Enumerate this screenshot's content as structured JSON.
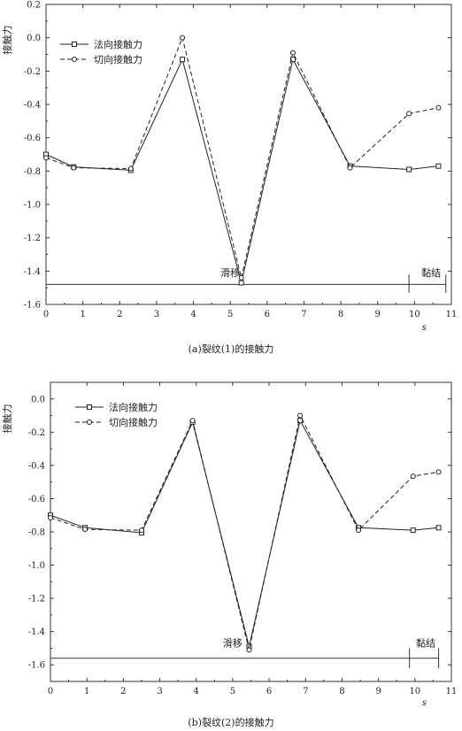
{
  "chart_data": [
    {
      "type": "line",
      "caption": "(a)裂纹(1)的接触力",
      "ylabel": "接触力",
      "xlabel": "s",
      "xlim": [
        0,
        11
      ],
      "ylim": [
        -1.6,
        0.2
      ],
      "xticks": [
        "0",
        "1",
        "2",
        "3",
        "4",
        "5",
        "6",
        "7",
        "8",
        "9",
        "10",
        "11"
      ],
      "yticks": [
        "0.2",
        "0.0",
        "-0.2",
        "-0.4",
        "-0.6",
        "-0.8",
        "-1.0",
        "-1.2",
        "-1.4",
        "-1.6"
      ],
      "legend_position": "top-left",
      "series": [
        {
          "name": "法向接触力",
          "style": "solid",
          "marker": "square",
          "x": [
            0,
            0.75,
            2.3,
            3.7,
            5.3,
            6.7,
            8.25,
            9.85,
            10.65
          ],
          "y": [
            -0.7,
            -0.775,
            -0.795,
            -0.13,
            -1.47,
            -0.13,
            -0.77,
            -0.79,
            -0.77
          ]
        },
        {
          "name": "切向接触力",
          "style": "dashed",
          "marker": "circle",
          "x": [
            0,
            0.75,
            2.3,
            3.7,
            5.3,
            6.7,
            8.25,
            9.85,
            10.65
          ],
          "y": [
            -0.72,
            -0.78,
            -0.785,
            0.0,
            -1.44,
            -0.09,
            -0.78,
            -0.455,
            -0.42
          ]
        }
      ],
      "annotations": [
        {
          "text": "滑移",
          "x": 5.0,
          "y": -1.43
        },
        {
          "text": "黏结",
          "x": 10.45,
          "y": -1.43
        }
      ],
      "regions": {
        "y": -1.48,
        "x_start": 0,
        "divider": 9.85,
        "x_end": 10.85,
        "divider_top": -1.42,
        "divider_bottom": -1.53
      }
    },
    {
      "type": "line",
      "caption": "(b)裂纹(2)的接触力",
      "ylabel": "接触力",
      "xlabel": "s",
      "xlim": [
        0,
        11
      ],
      "ylim": [
        -1.7,
        0.1
      ],
      "xticks": [
        "0",
        "1",
        "2",
        "3",
        "4",
        "5",
        "6",
        "7",
        "8",
        "9",
        "10",
        "11"
      ],
      "yticks": [
        "0.0",
        "-0.2",
        "-0.4",
        "-0.6",
        "-0.8",
        "-1.0",
        "-1.2",
        "-1.4",
        "-1.6"
      ],
      "legend_position": "top-left",
      "series": [
        {
          "name": "法向接触力",
          "style": "solid",
          "marker": "square",
          "x": [
            0,
            0.95,
            2.5,
            3.9,
            5.45,
            6.85,
            8.45,
            9.95,
            10.65
          ],
          "y": [
            -0.7,
            -0.775,
            -0.805,
            -0.14,
            -1.49,
            -0.13,
            -0.775,
            -0.79,
            -0.775
          ]
        },
        {
          "name": "切向接触力",
          "style": "dashed",
          "marker": "circle",
          "x": [
            0,
            0.95,
            2.5,
            3.9,
            5.45,
            6.85,
            8.45,
            9.95,
            10.65
          ],
          "y": [
            -0.715,
            -0.785,
            -0.79,
            -0.13,
            -1.51,
            -0.1,
            -0.79,
            -0.465,
            -0.44
          ]
        }
      ],
      "annotations": [
        {
          "text": "滑移",
          "x": 5.0,
          "y": -1.49
        },
        {
          "text": "黏结",
          "x": 10.3,
          "y": -1.49
        }
      ],
      "regions": {
        "y": -1.56,
        "x_start": 0,
        "divider": 9.85,
        "x_end": 10.65,
        "divider_top": -1.5,
        "divider_bottom": -1.62
      }
    }
  ]
}
